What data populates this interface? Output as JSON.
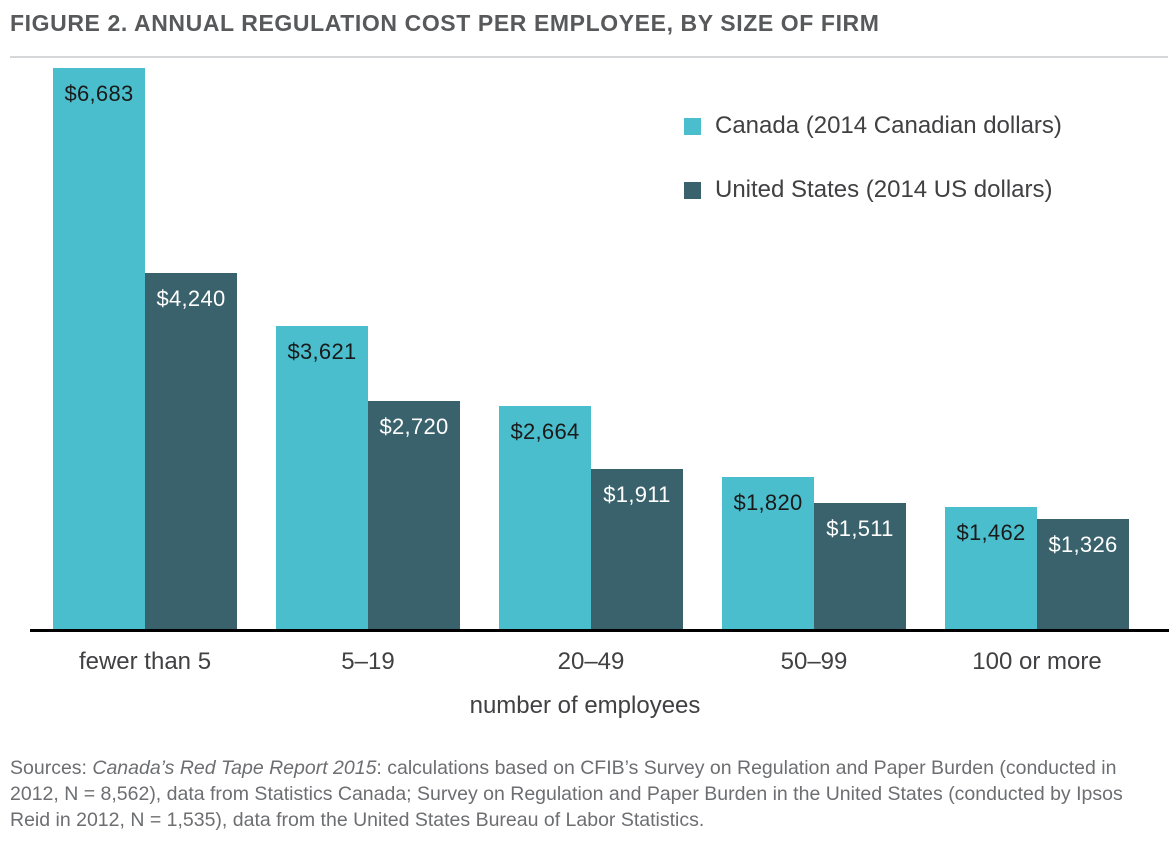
{
  "figure": {
    "title": "FIGURE 2. ANNUAL REGULATION COST PER EMPLOYEE, BY SIZE OF FIRM"
  },
  "chart_data": {
    "type": "bar",
    "title": "FIGURE 2. ANNUAL REGULATION COST PER EMPLOYEE, BY SIZE OF FIRM",
    "categories": [
      "fewer than 5",
      "5–19",
      "20–49",
      "50–99",
      "100 or more"
    ],
    "series": [
      {
        "key": "canada",
        "name": "Canada (2014 Canadian dollars)",
        "color": "#4BBECD",
        "label_color": "#1A1A1A",
        "values": [
          6683,
          3621,
          2664,
          1820,
          1462
        ],
        "labels": [
          "$6,683",
          "$3,621",
          "$2,664",
          "$1,820",
          "$1,462"
        ]
      },
      {
        "key": "us",
        "name": "United States (2014 US dollars)",
        "color": "#3A626C",
        "label_color": "#FFFFFF",
        "values": [
          4240,
          2720,
          1911,
          1511,
          1326
        ],
        "labels": [
          "$4,240",
          "$2,720",
          "$1,911",
          "$1,511",
          "$1,326"
        ]
      }
    ],
    "xlabel": "number of employees",
    "ylabel": "",
    "ylim": [
      0,
      6683
    ],
    "grid": false,
    "legend_position": "top-right"
  },
  "sources": {
    "prefix": "Sources: ",
    "italic": "Canada’s Red Tape Report 2015",
    "rest": ": calculations based on CFIB’s Survey on Regulation and Paper Burden (conducted in 2012, N = 8,562), data from Statistics Canada; Survey on Regulation and Paper Burden in the United States (conducted by Ipsos Reid in 2012, N = 1,535), data from the United States Bureau of Labor Statistics."
  }
}
